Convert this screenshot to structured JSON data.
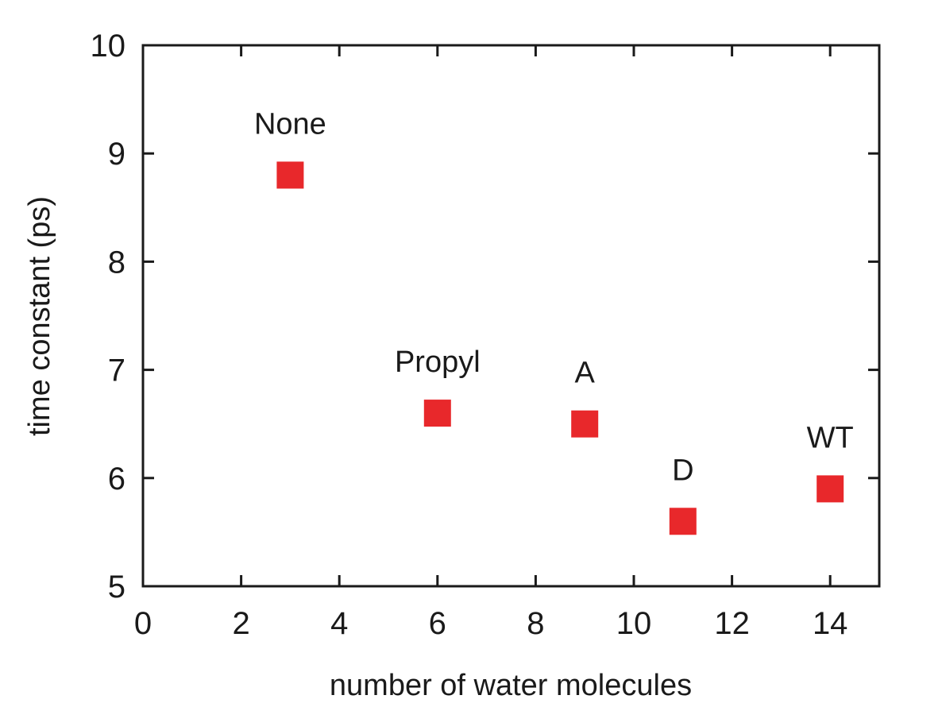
{
  "chart_data": {
    "type": "scatter",
    "title": "",
    "xlabel": "number of water molecules",
    "ylabel": "time constant (ps)",
    "xlim": [
      0,
      15
    ],
    "ylim": [
      5,
      10
    ],
    "xticks": [
      0,
      2,
      4,
      6,
      8,
      10,
      12,
      14
    ],
    "yticks": [
      5,
      6,
      7,
      8,
      9,
      10
    ],
    "xtick_labels": [
      "0",
      "2",
      "4",
      "6",
      "8",
      "10",
      "12",
      "14"
    ],
    "ytick_labels": [
      "5",
      "6",
      "7",
      "8",
      "9",
      "10"
    ],
    "grid": false,
    "legend": "none",
    "marker": "square",
    "marker_color": "#e8282b",
    "series": [
      {
        "points": [
          {
            "label": "None",
            "x": 3,
            "y": 8.8
          },
          {
            "label": "Propyl",
            "x": 6,
            "y": 6.6
          },
          {
            "label": "A",
            "x": 9,
            "y": 6.5
          },
          {
            "label": "D",
            "x": 11,
            "y": 5.6
          },
          {
            "label": "WT",
            "x": 14,
            "y": 5.9
          }
        ]
      }
    ]
  }
}
